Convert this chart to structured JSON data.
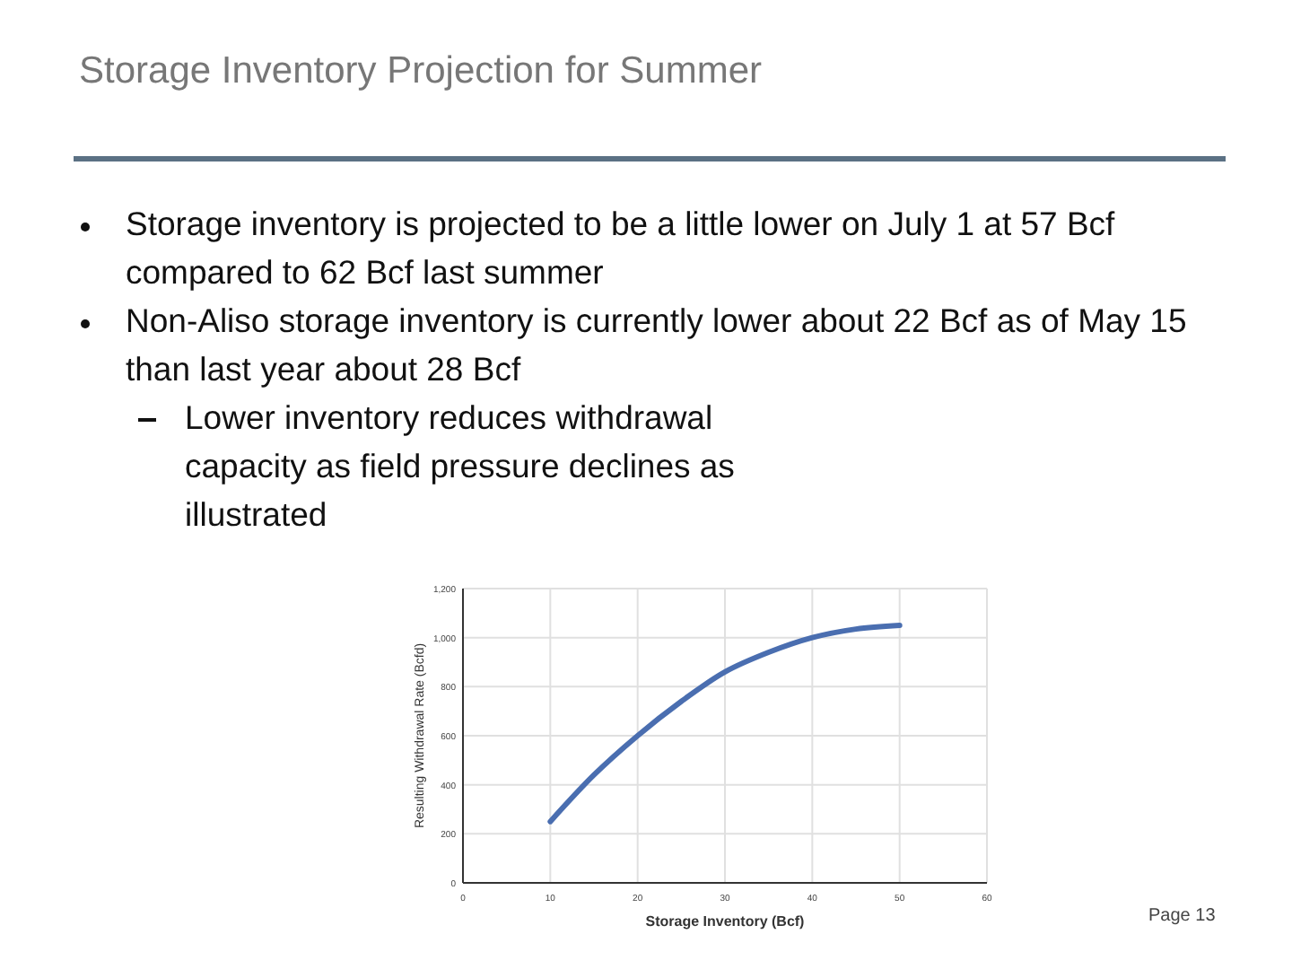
{
  "chart_data": {
    "type": "line",
    "title": "Storage Inventory Projection for Summer",
    "annotations": [
      "Storage inventory is projected to be a little lower on July 1 at 57 Bcf compared to 62 Bcf last summer",
      "Non-Aliso storage inventory is currently lower about 22 Bcf as of May 15 than last year about 28 Bcf",
      "Lower inventory reduces withdrawal capacity as field pressure declines as illustrated",
      "Page 13"
    ],
    "xlabel": "Storage Inventory (Bcf)",
    "ylabel": "Resulting Withdrawal Rate (Bcfd)",
    "x": [
      10,
      15,
      20,
      25,
      30,
      35,
      40,
      45,
      50
    ],
    "series": [
      {
        "color": "#4a6eb0",
        "values": [
          250,
          440,
          600,
          740,
          860,
          940,
          1000,
          1035,
          1050
        ]
      }
    ],
    "xlim": [
      0,
      60
    ],
    "xticks": [
      0,
      10,
      20,
      30,
      40,
      50,
      60
    ],
    "ylim": [
      0,
      1200
    ],
    "yticks": [
      0,
      200,
      400,
      600,
      800,
      {
        "value": 1000,
        "label": "1,000"
      },
      {
        "value": 1200,
        "label": "1,200"
      }
    ],
    "grid": true,
    "marker": "none",
    "line_style": "solid"
  }
}
